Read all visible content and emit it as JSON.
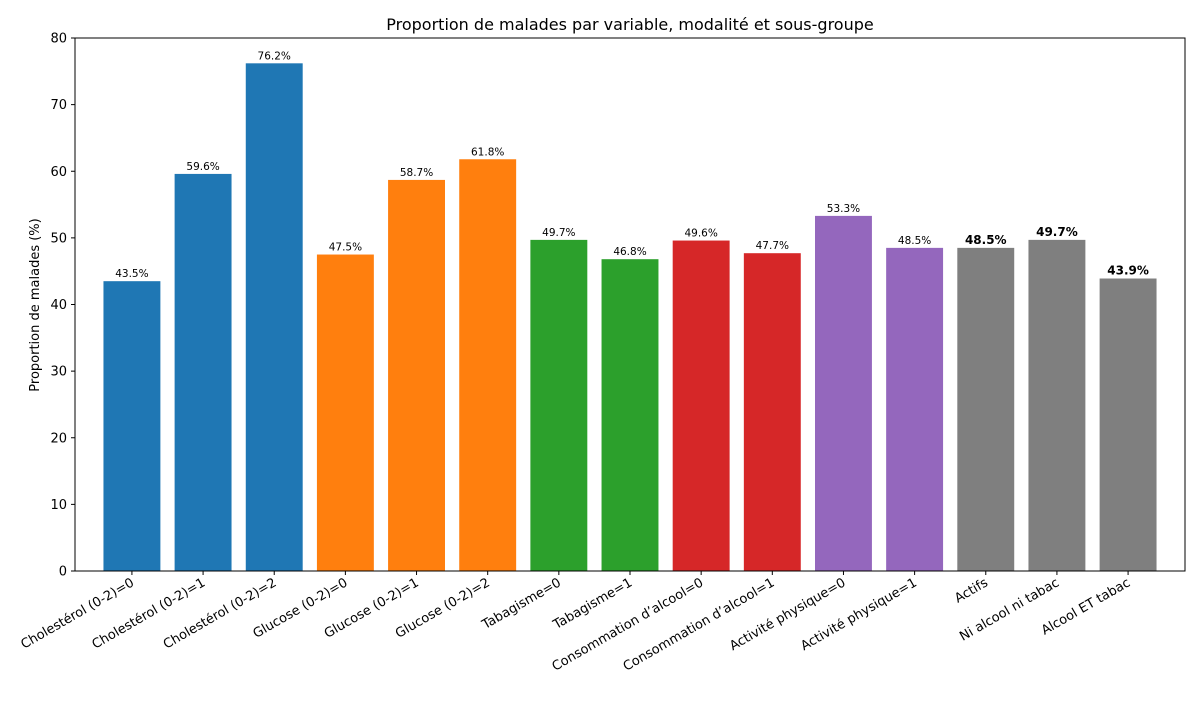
{
  "chart_data": {
    "type": "bar",
    "title": "Proportion de malades par variable, modalité et sous-groupe",
    "xlabel": "",
    "ylabel": "Proportion de malades (%)",
    "ylim": [
      0,
      80
    ],
    "yticks": [
      0,
      10,
      20,
      30,
      40,
      50,
      60,
      70,
      80
    ],
    "grid": false,
    "categories": [
      "Cholestérol (0-2)=0",
      "Cholestérol (0-2)=1",
      "Cholestérol (0-2)=2",
      "Glucose (0-2)=0",
      "Glucose (0-2)=1",
      "Glucose (0-2)=2",
      "Tabagisme=0",
      "Tabagisme=1",
      "Consommation d’alcool=0",
      "Consommation d’alcool=1",
      "Activité physique=0",
      "Activité physique=1",
      "Actifs",
      "Ni alcool ni tabac",
      "Alcool ET tabac"
    ],
    "values": [
      43.5,
      59.6,
      76.2,
      47.5,
      58.7,
      61.8,
      49.7,
      46.8,
      49.6,
      47.7,
      53.3,
      48.5,
      48.5,
      49.7,
      43.9
    ],
    "data_labels": [
      "43.5%",
      "59.6%",
      "76.2%",
      "47.5%",
      "58.7%",
      "61.8%",
      "49.7%",
      "46.8%",
      "49.6%",
      "47.7%",
      "53.3%",
      "48.5%",
      "48.5%",
      "49.7%",
      "43.9%"
    ],
    "bold_labels": [
      false,
      false,
      false,
      false,
      false,
      false,
      false,
      false,
      false,
      false,
      false,
      false,
      true,
      true,
      true
    ],
    "colors": [
      "#1f77b4",
      "#1f77b4",
      "#1f77b4",
      "#ff7f0e",
      "#ff7f0e",
      "#ff7f0e",
      "#2ca02c",
      "#2ca02c",
      "#d62728",
      "#d62728",
      "#9467bd",
      "#9467bd",
      "#7f7f7f",
      "#7f7f7f",
      "#7f7f7f"
    ]
  }
}
